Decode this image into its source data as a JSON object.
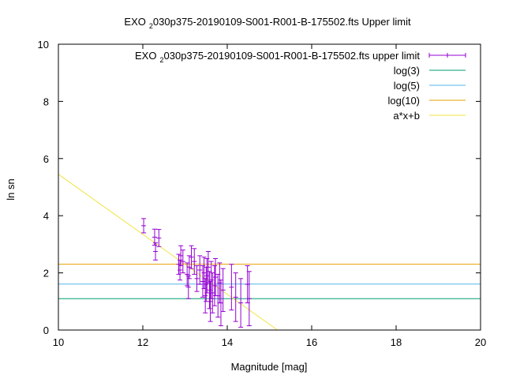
{
  "chart_data": {
    "type": "scatter",
    "title_prefix": "EXO",
    "title_sub": "2",
    "title_suffix": "030p375-20190109-S001-R001-B-175502.fts Upper limit",
    "xlabel": "Magnitude [mag]",
    "ylabel": "ln sn",
    "xlim": [
      10,
      20
    ],
    "ylim": [
      0,
      10
    ],
    "xticks": [
      "10",
      "12",
      "14",
      "16",
      "18",
      "20"
    ],
    "yticks": [
      "0",
      "2",
      "4",
      "6",
      "8",
      "10"
    ],
    "grid": false,
    "legend_position": "top-right",
    "series": [
      {
        "name_prefix": "EXO",
        "name_sub": "2",
        "name_suffix": "030p375-20190109-S001-R001-B-175502.fts upper limit",
        "kind": "errorbars",
        "color": "#9400d3",
        "points": [
          {
            "x": 12.02,
            "y": 3.65,
            "e": 0.25
          },
          {
            "x": 12.28,
            "y": 3.25,
            "e": 0.28
          },
          {
            "x": 12.3,
            "y": 2.75,
            "e": 0.3
          },
          {
            "x": 12.38,
            "y": 3.22,
            "e": 0.3
          },
          {
            "x": 12.85,
            "y": 2.3,
            "e": 0.35
          },
          {
            "x": 12.88,
            "y": 2.1,
            "e": 0.35
          },
          {
            "x": 12.9,
            "y": 2.6,
            "e": 0.35
          },
          {
            "x": 12.95,
            "y": 2.4,
            "e": 0.4
          },
          {
            "x": 13.05,
            "y": 1.95,
            "e": 0.4
          },
          {
            "x": 13.08,
            "y": 1.5,
            "e": 0.4
          },
          {
            "x": 13.1,
            "y": 2.2,
            "e": 0.4
          },
          {
            "x": 13.15,
            "y": 2.55,
            "e": 0.4
          },
          {
            "x": 13.22,
            "y": 2.4,
            "e": 0.45
          },
          {
            "x": 13.28,
            "y": 1.8,
            "e": 0.45
          },
          {
            "x": 13.35,
            "y": 2.1,
            "e": 0.5
          },
          {
            "x": 13.42,
            "y": 1.7,
            "e": 0.55
          },
          {
            "x": 13.45,
            "y": 2.0,
            "e": 0.55
          },
          {
            "x": 13.48,
            "y": 1.2,
            "e": 0.6
          },
          {
            "x": 13.5,
            "y": 1.6,
            "e": 0.6
          },
          {
            "x": 13.52,
            "y": 1.9,
            "e": 0.6
          },
          {
            "x": 13.55,
            "y": 2.2,
            "e": 0.55
          },
          {
            "x": 13.58,
            "y": 1.4,
            "e": 0.65
          },
          {
            "x": 13.6,
            "y": 1.0,
            "e": 0.7
          },
          {
            "x": 13.62,
            "y": 1.75,
            "e": 0.65
          },
          {
            "x": 13.65,
            "y": 1.3,
            "e": 0.7
          },
          {
            "x": 13.7,
            "y": 1.55,
            "e": 0.7
          },
          {
            "x": 13.72,
            "y": 1.85,
            "e": 0.65
          },
          {
            "x": 13.78,
            "y": 1.2,
            "e": 0.75
          },
          {
            "x": 13.82,
            "y": 1.65,
            "e": 0.7
          },
          {
            "x": 13.85,
            "y": 0.95,
            "e": 0.8
          },
          {
            "x": 13.9,
            "y": 1.4,
            "e": 0.75
          },
          {
            "x": 14.1,
            "y": 1.5,
            "e": 0.8
          },
          {
            "x": 14.2,
            "y": 1.15,
            "e": 0.85
          },
          {
            "x": 14.32,
            "y": 0.95,
            "e": 0.85
          },
          {
            "x": 14.48,
            "y": 1.6,
            "e": 0.65
          },
          {
            "x": 14.52,
            "y": 1.1,
            "e": 0.95
          }
        ]
      },
      {
        "name": "log(3)",
        "kind": "hline",
        "y": 1.0986,
        "color": "#009e73"
      },
      {
        "name": "log(5)",
        "kind": "hline",
        "y": 1.6094,
        "color": "#56b4e9"
      },
      {
        "name": "log(10)",
        "kind": "hline",
        "y": 2.3026,
        "color": "#e69f00"
      },
      {
        "name": "a*x+b",
        "kind": "fit_line",
        "slope": -1.05,
        "intercept": 15.95,
        "color": "#f0e442"
      }
    ]
  }
}
